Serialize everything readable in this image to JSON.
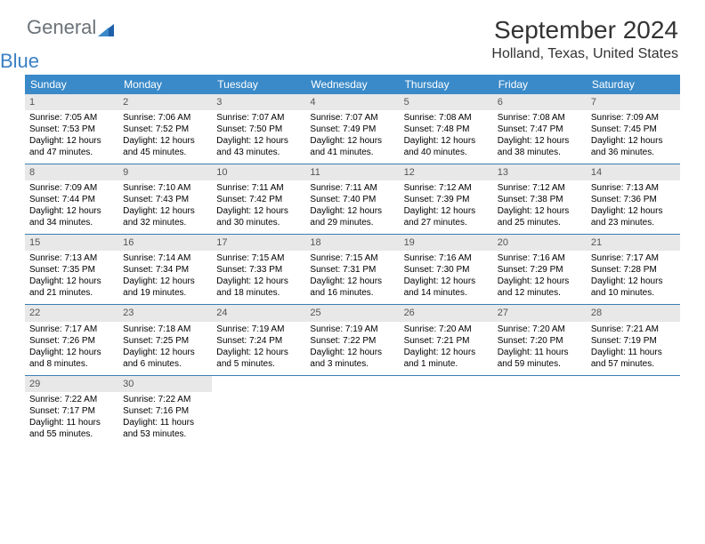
{
  "logo": {
    "word1": "General",
    "word2": "Blue"
  },
  "title": "September 2024",
  "subtitle": "Holland, Texas, United States",
  "colors": {
    "header_bg": "#3a8ac9",
    "week_border": "#3a7fb5",
    "daynum_bg": "#e8e8e8",
    "logo_gray": "#6b7278",
    "logo_blue": "#3a7fc4"
  },
  "day_names": [
    "Sunday",
    "Monday",
    "Tuesday",
    "Wednesday",
    "Thursday",
    "Friday",
    "Saturday"
  ],
  "weeks": [
    [
      {
        "n": "1",
        "sr": "7:05 AM",
        "ss": "7:53 PM",
        "dl": "12 hours and 47 minutes."
      },
      {
        "n": "2",
        "sr": "7:06 AM",
        "ss": "7:52 PM",
        "dl": "12 hours and 45 minutes."
      },
      {
        "n": "3",
        "sr": "7:07 AM",
        "ss": "7:50 PM",
        "dl": "12 hours and 43 minutes."
      },
      {
        "n": "4",
        "sr": "7:07 AM",
        "ss": "7:49 PM",
        "dl": "12 hours and 41 minutes."
      },
      {
        "n": "5",
        "sr": "7:08 AM",
        "ss": "7:48 PM",
        "dl": "12 hours and 40 minutes."
      },
      {
        "n": "6",
        "sr": "7:08 AM",
        "ss": "7:47 PM",
        "dl": "12 hours and 38 minutes."
      },
      {
        "n": "7",
        "sr": "7:09 AM",
        "ss": "7:45 PM",
        "dl": "12 hours and 36 minutes."
      }
    ],
    [
      {
        "n": "8",
        "sr": "7:09 AM",
        "ss": "7:44 PM",
        "dl": "12 hours and 34 minutes."
      },
      {
        "n": "9",
        "sr": "7:10 AM",
        "ss": "7:43 PM",
        "dl": "12 hours and 32 minutes."
      },
      {
        "n": "10",
        "sr": "7:11 AM",
        "ss": "7:42 PM",
        "dl": "12 hours and 30 minutes."
      },
      {
        "n": "11",
        "sr": "7:11 AM",
        "ss": "7:40 PM",
        "dl": "12 hours and 29 minutes."
      },
      {
        "n": "12",
        "sr": "7:12 AM",
        "ss": "7:39 PM",
        "dl": "12 hours and 27 minutes."
      },
      {
        "n": "13",
        "sr": "7:12 AM",
        "ss": "7:38 PM",
        "dl": "12 hours and 25 minutes."
      },
      {
        "n": "14",
        "sr": "7:13 AM",
        "ss": "7:36 PM",
        "dl": "12 hours and 23 minutes."
      }
    ],
    [
      {
        "n": "15",
        "sr": "7:13 AM",
        "ss": "7:35 PM",
        "dl": "12 hours and 21 minutes."
      },
      {
        "n": "16",
        "sr": "7:14 AM",
        "ss": "7:34 PM",
        "dl": "12 hours and 19 minutes."
      },
      {
        "n": "17",
        "sr": "7:15 AM",
        "ss": "7:33 PM",
        "dl": "12 hours and 18 minutes."
      },
      {
        "n": "18",
        "sr": "7:15 AM",
        "ss": "7:31 PM",
        "dl": "12 hours and 16 minutes."
      },
      {
        "n": "19",
        "sr": "7:16 AM",
        "ss": "7:30 PM",
        "dl": "12 hours and 14 minutes."
      },
      {
        "n": "20",
        "sr": "7:16 AM",
        "ss": "7:29 PM",
        "dl": "12 hours and 12 minutes."
      },
      {
        "n": "21",
        "sr": "7:17 AM",
        "ss": "7:28 PM",
        "dl": "12 hours and 10 minutes."
      }
    ],
    [
      {
        "n": "22",
        "sr": "7:17 AM",
        "ss": "7:26 PM",
        "dl": "12 hours and 8 minutes."
      },
      {
        "n": "23",
        "sr": "7:18 AM",
        "ss": "7:25 PM",
        "dl": "12 hours and 6 minutes."
      },
      {
        "n": "24",
        "sr": "7:19 AM",
        "ss": "7:24 PM",
        "dl": "12 hours and 5 minutes."
      },
      {
        "n": "25",
        "sr": "7:19 AM",
        "ss": "7:22 PM",
        "dl": "12 hours and 3 minutes."
      },
      {
        "n": "26",
        "sr": "7:20 AM",
        "ss": "7:21 PM",
        "dl": "12 hours and 1 minute."
      },
      {
        "n": "27",
        "sr": "7:20 AM",
        "ss": "7:20 PM",
        "dl": "11 hours and 59 minutes."
      },
      {
        "n": "28",
        "sr": "7:21 AM",
        "ss": "7:19 PM",
        "dl": "11 hours and 57 minutes."
      }
    ],
    [
      {
        "n": "29",
        "sr": "7:22 AM",
        "ss": "7:17 PM",
        "dl": "11 hours and 55 minutes."
      },
      {
        "n": "30",
        "sr": "7:22 AM",
        "ss": "7:16 PM",
        "dl": "11 hours and 53 minutes."
      },
      null,
      null,
      null,
      null,
      null
    ]
  ],
  "labels": {
    "sunrise": "Sunrise: ",
    "sunset": "Sunset: ",
    "daylight": "Daylight: "
  }
}
